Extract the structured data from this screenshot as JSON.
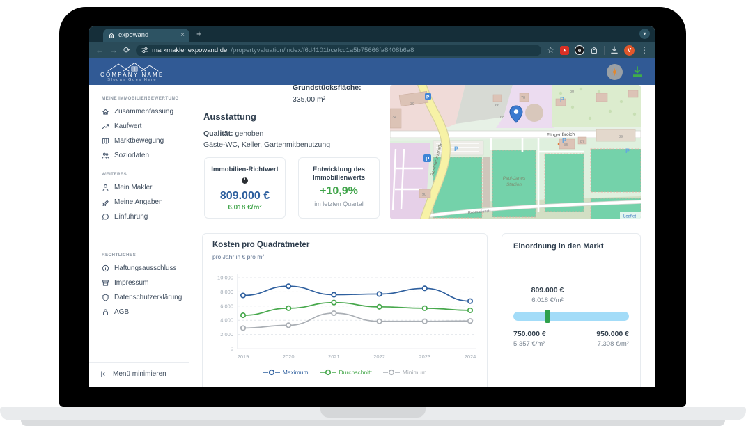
{
  "browser": {
    "tab_title": "expowand",
    "url_host": "markmakler.expowand.de",
    "url_path": "/propertyvaluation/index/f6d4101bcefcc1a5b75666fa8408b6a8",
    "avatar_letter": "V",
    "icons": [
      "home-favicon",
      "close-icon",
      "new-tab-icon",
      "tab-search-chevron",
      "back-icon",
      "forward-icon",
      "reload-icon",
      "site-settings-icon",
      "bookmark-star-icon",
      "pdf-extension-icon",
      "e-extension-icon",
      "extensions-puzzle-icon",
      "download-icon",
      "profile-avatar",
      "menu-kebab-icon"
    ]
  },
  "header": {
    "company": "COMPANY NAME",
    "slogan": "Slogan Goes Here",
    "icons": [
      "roofline-logo",
      "theme-sun-icon",
      "download-report-icon"
    ]
  },
  "sidebar": {
    "sections": [
      {
        "title": "MEINE IMMOBILIENBEWERTUNG",
        "items": [
          {
            "label": "Zusammenfassung",
            "icon": "home-icon"
          },
          {
            "label": "Kaufwert",
            "icon": "trend-icon"
          },
          {
            "label": "Marktbewegung",
            "icon": "map-icon"
          },
          {
            "label": "Soziodaten",
            "icon": "people-icon"
          }
        ]
      },
      {
        "title": "WEITERES",
        "items": [
          {
            "label": "Mein Makler",
            "icon": "person-icon"
          },
          {
            "label": "Meine Angaben",
            "icon": "pen-icon"
          },
          {
            "label": "Einführung",
            "icon": "chat-icon"
          }
        ]
      },
      {
        "title": "RECHTLICHES",
        "items": [
          {
            "label": "Haftungsausschluss",
            "icon": "info-icon"
          },
          {
            "label": "Impressum",
            "icon": "archive-icon"
          },
          {
            "label": "Datenschutzerklärung",
            "icon": "shield-icon"
          },
          {
            "label": "AGB",
            "icon": "lock-icon"
          }
        ]
      }
    ],
    "minimize_label": "Menü minimieren"
  },
  "property": {
    "area_label": "Grundstücksfläche:",
    "area_value": "335,00 m²"
  },
  "ausstattung": {
    "title": "Ausstattung",
    "quality_label": "Qualität:",
    "quality_value": "gehoben",
    "features": "Gäste-WC, Keller, Gartenmitbenutzung"
  },
  "metric_cards": {
    "richtwert": {
      "title": "Immobilien-Richtwert",
      "value": "809.000 €",
      "per_sqm": "6.018 €/m²"
    },
    "entwicklung": {
      "title": "Entwicklung des Immobilienwerts",
      "value": "+10,9%",
      "caption": "im letzten Quartal"
    }
  },
  "map": {
    "street_main": "Flinger Broich",
    "street_left": "Rosmarinstraße",
    "street_bottom": "Rosmarienstr.",
    "poi_line1": "Paul-Janes",
    "poi_line2": "Stadion",
    "attribution": "Leaflet",
    "parking_letter": "P",
    "house_numbers": [
      "34",
      "39",
      "66",
      "68",
      "70",
      "80",
      "85",
      "87",
      "89",
      "90"
    ],
    "marker_color": "#3b7ad0"
  },
  "chart_data": {
    "type": "line",
    "title": "Kosten pro Quadratmeter",
    "subtitle": "pro Jahr in € pro m²",
    "x": [
      "2019",
      "2020",
      "2021",
      "2022",
      "2023",
      "2024"
    ],
    "series": [
      {
        "name": "Maximum",
        "color": "#2e5f9e",
        "values": [
          7500,
          8800,
          7600,
          7700,
          8500,
          6700
        ]
      },
      {
        "name": "Durchschnitt",
        "color": "#47a84c",
        "values": [
          4700,
          5700,
          6500,
          5900,
          5700,
          5400
        ]
      },
      {
        "name": "Minimum",
        "color": "#a9aeb4",
        "values": [
          2900,
          3300,
          5000,
          3850,
          3850,
          3900
        ]
      }
    ],
    "ylim": [
      0,
      10000
    ],
    "ytick_step": 2000,
    "ytick_labels": [
      "0",
      "2,000",
      "4,000",
      "6,000",
      "8,000",
      "10,000"
    ],
    "grid": "dashed-horizontal",
    "legend_position": "bottom"
  },
  "market": {
    "title": "Einordnung in den Markt",
    "current_value": "809.000 €",
    "current_per_sqm": "6.018 €/m²",
    "min_value": "750.000 €",
    "min_per_sqm": "5.357 €/m²",
    "max_value": "950.000 €",
    "max_per_sqm": "7.308 €/m²",
    "marker_percent": 29.5,
    "bar_color": "#a3dcf8",
    "marker_color": "#2fa04c"
  }
}
